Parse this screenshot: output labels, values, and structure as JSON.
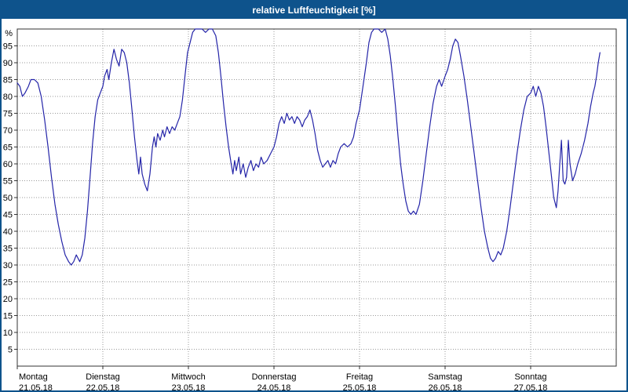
{
  "title": "relative Luftfeuchtigkeit [%]",
  "colors": {
    "title_bar": "#0e538c",
    "title_text": "#ffffff",
    "line": "#2424a8",
    "grid": "#9a9a9a",
    "plot_border": "#333333",
    "axis_text": "#000000",
    "background": "#ffffff"
  },
  "chart_data": {
    "type": "line",
    "title": "relative Luftfeuchtigkeit [%]",
    "xlabel": "",
    "ylabel": "%",
    "y_unit_label": "%",
    "ylim": [
      0,
      100
    ],
    "xlim_days": [
      0,
      7
    ],
    "grid": true,
    "legend": "none",
    "y_ticks": [
      5,
      10,
      15,
      20,
      25,
      30,
      35,
      40,
      45,
      50,
      55,
      60,
      65,
      70,
      75,
      80,
      85,
      90,
      95
    ],
    "x_labels": [
      {
        "day": "Montag",
        "date": "21.05.18"
      },
      {
        "day": "Dienstag",
        "date": "22.05.18"
      },
      {
        "day": "Mittwoch",
        "date": "23.05.18"
      },
      {
        "day": "Donnerstag",
        "date": "24.05.18"
      },
      {
        "day": "Freitag",
        "date": "25.05.18"
      },
      {
        "day": "Samstag",
        "date": "26.05.18"
      },
      {
        "day": "Sonntag",
        "date": "27.05.18"
      }
    ],
    "series": [
      {
        "name": "relative Luftfeuchtigkeit [%]",
        "x_unit": "days since 21.05.18 00:00",
        "points": [
          [
            0.0,
            84
          ],
          [
            0.03,
            83
          ],
          [
            0.06,
            80
          ],
          [
            0.09,
            81
          ],
          [
            0.13,
            83
          ],
          [
            0.16,
            85
          ],
          [
            0.2,
            85
          ],
          [
            0.24,
            84
          ],
          [
            0.28,
            80
          ],
          [
            0.32,
            73
          ],
          [
            0.36,
            65
          ],
          [
            0.4,
            56
          ],
          [
            0.44,
            48
          ],
          [
            0.48,
            42
          ],
          [
            0.52,
            37
          ],
          [
            0.56,
            33
          ],
          [
            0.6,
            31
          ],
          [
            0.63,
            30
          ],
          [
            0.66,
            31
          ],
          [
            0.69,
            33
          ],
          [
            0.71,
            32
          ],
          [
            0.73,
            31
          ],
          [
            0.76,
            33
          ],
          [
            0.79,
            38
          ],
          [
            0.82,
            46
          ],
          [
            0.85,
            56
          ],
          [
            0.88,
            66
          ],
          [
            0.91,
            74
          ],
          [
            0.94,
            79
          ],
          [
            0.97,
            81
          ],
          [
            1.0,
            83
          ],
          [
            1.02,
            86
          ],
          [
            1.05,
            88
          ],
          [
            1.07,
            85
          ],
          [
            1.1,
            90
          ],
          [
            1.13,
            94
          ],
          [
            1.16,
            91
          ],
          [
            1.19,
            89
          ],
          [
            1.22,
            94
          ],
          [
            1.25,
            93
          ],
          [
            1.28,
            90
          ],
          [
            1.31,
            84
          ],
          [
            1.34,
            76
          ],
          [
            1.37,
            68
          ],
          [
            1.4,
            61
          ],
          [
            1.42,
            57
          ],
          [
            1.44,
            62
          ],
          [
            1.46,
            57
          ],
          [
            1.49,
            54
          ],
          [
            1.52,
            52
          ],
          [
            1.55,
            57
          ],
          [
            1.58,
            65
          ],
          [
            1.6,
            68
          ],
          [
            1.62,
            65
          ],
          [
            1.64,
            69
          ],
          [
            1.67,
            67
          ],
          [
            1.7,
            70
          ],
          [
            1.72,
            68
          ],
          [
            1.75,
            71
          ],
          [
            1.78,
            69
          ],
          [
            1.81,
            71
          ],
          [
            1.84,
            70
          ],
          [
            1.87,
            72
          ],
          [
            1.9,
            74
          ],
          [
            1.93,
            79
          ],
          [
            1.96,
            86
          ],
          [
            1.99,
            93
          ],
          [
            2.02,
            96
          ],
          [
            2.05,
            99
          ],
          [
            2.08,
            100
          ],
          [
            2.12,
            100
          ],
          [
            2.16,
            100
          ],
          [
            2.2,
            99
          ],
          [
            2.24,
            100
          ],
          [
            2.28,
            100
          ],
          [
            2.32,
            98
          ],
          [
            2.35,
            93
          ],
          [
            2.38,
            86
          ],
          [
            2.41,
            78
          ],
          [
            2.44,
            71
          ],
          [
            2.47,
            65
          ],
          [
            2.5,
            60
          ],
          [
            2.52,
            57
          ],
          [
            2.54,
            61
          ],
          [
            2.56,
            58
          ],
          [
            2.59,
            62
          ],
          [
            2.61,
            57
          ],
          [
            2.64,
            60
          ],
          [
            2.67,
            56
          ],
          [
            2.7,
            59
          ],
          [
            2.73,
            61
          ],
          [
            2.76,
            58
          ],
          [
            2.79,
            60
          ],
          [
            2.82,
            59
          ],
          [
            2.85,
            62
          ],
          [
            2.88,
            60
          ],
          [
            2.92,
            61
          ],
          [
            2.96,
            63
          ],
          [
            3.0,
            65
          ],
          [
            3.03,
            68
          ],
          [
            3.06,
            72
          ],
          [
            3.09,
            74
          ],
          [
            3.12,
            72
          ],
          [
            3.15,
            75
          ],
          [
            3.18,
            73
          ],
          [
            3.21,
            74
          ],
          [
            3.24,
            72
          ],
          [
            3.27,
            74
          ],
          [
            3.3,
            73
          ],
          [
            3.33,
            71
          ],
          [
            3.36,
            73
          ],
          [
            3.39,
            74
          ],
          [
            3.42,
            76
          ],
          [
            3.45,
            73
          ],
          [
            3.48,
            69
          ],
          [
            3.51,
            64
          ],
          [
            3.54,
            61
          ],
          [
            3.57,
            59
          ],
          [
            3.6,
            60
          ],
          [
            3.63,
            61
          ],
          [
            3.66,
            59
          ],
          [
            3.69,
            61
          ],
          [
            3.72,
            60
          ],
          [
            3.75,
            63
          ],
          [
            3.78,
            65
          ],
          [
            3.82,
            66
          ],
          [
            3.86,
            65
          ],
          [
            3.9,
            66
          ],
          [
            3.93,
            68
          ],
          [
            3.96,
            72
          ],
          [
            4.0,
            76
          ],
          [
            4.04,
            83
          ],
          [
            4.08,
            90
          ],
          [
            4.11,
            96
          ],
          [
            4.14,
            99
          ],
          [
            4.17,
            100
          ],
          [
            4.22,
            100
          ],
          [
            4.26,
            99
          ],
          [
            4.3,
            100
          ],
          [
            4.33,
            97
          ],
          [
            4.36,
            92
          ],
          [
            4.39,
            85
          ],
          [
            4.42,
            77
          ],
          [
            4.45,
            68
          ],
          [
            4.48,
            60
          ],
          [
            4.51,
            54
          ],
          [
            4.54,
            49
          ],
          [
            4.57,
            46
          ],
          [
            4.6,
            45
          ],
          [
            4.63,
            46
          ],
          [
            4.66,
            45
          ],
          [
            4.7,
            48
          ],
          [
            4.74,
            55
          ],
          [
            4.78,
            63
          ],
          [
            4.82,
            71
          ],
          [
            4.86,
            78
          ],
          [
            4.9,
            83
          ],
          [
            4.93,
            85
          ],
          [
            4.96,
            83
          ],
          [
            5.0,
            86
          ],
          [
            5.03,
            88
          ],
          [
            5.06,
            91
          ],
          [
            5.09,
            95
          ],
          [
            5.12,
            97
          ],
          [
            5.15,
            96
          ],
          [
            5.18,
            92
          ],
          [
            5.22,
            86
          ],
          [
            5.26,
            79
          ],
          [
            5.3,
            71
          ],
          [
            5.34,
            63
          ],
          [
            5.38,
            55
          ],
          [
            5.42,
            47
          ],
          [
            5.46,
            40
          ],
          [
            5.5,
            35
          ],
          [
            5.53,
            32
          ],
          [
            5.56,
            31
          ],
          [
            5.59,
            32
          ],
          [
            5.62,
            34
          ],
          [
            5.65,
            33
          ],
          [
            5.68,
            35
          ],
          [
            5.72,
            40
          ],
          [
            5.76,
            47
          ],
          [
            5.8,
            55
          ],
          [
            5.84,
            63
          ],
          [
            5.88,
            70
          ],
          [
            5.92,
            76
          ],
          [
            5.96,
            80
          ],
          [
            6.0,
            81
          ],
          [
            6.03,
            83
          ],
          [
            6.06,
            80
          ],
          [
            6.09,
            83
          ],
          [
            6.12,
            81
          ],
          [
            6.15,
            77
          ],
          [
            6.18,
            71
          ],
          [
            6.21,
            64
          ],
          [
            6.24,
            57
          ],
          [
            6.27,
            50
          ],
          [
            6.3,
            47
          ],
          [
            6.32,
            52
          ],
          [
            6.34,
            60
          ],
          [
            6.36,
            67
          ],
          [
            6.38,
            55
          ],
          [
            6.4,
            54
          ],
          [
            6.42,
            56
          ],
          [
            6.44,
            67
          ],
          [
            6.46,
            60
          ],
          [
            6.49,
            55
          ],
          [
            6.52,
            57
          ],
          [
            6.55,
            60
          ],
          [
            6.59,
            63
          ],
          [
            6.63,
            67
          ],
          [
            6.67,
            72
          ],
          [
            6.7,
            77
          ],
          [
            6.73,
            81
          ],
          [
            6.75,
            83
          ],
          [
            6.77,
            86
          ],
          [
            6.79,
            90
          ],
          [
            6.81,
            93
          ]
        ]
      }
    ]
  }
}
